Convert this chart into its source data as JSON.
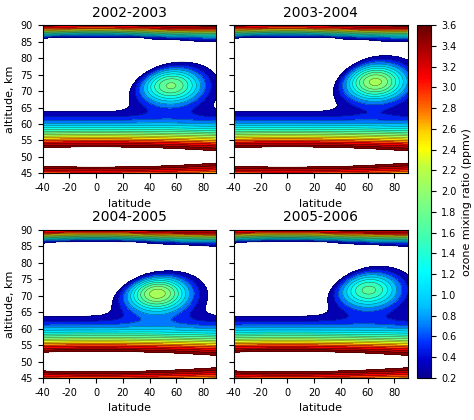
{
  "titles": [
    "2002-2003",
    "2003-2004",
    "2004-2005",
    "2005-2006"
  ],
  "lat_range": [
    -40,
    90
  ],
  "alt_range": [
    45,
    90
  ],
  "colorbar_levels": [
    0.2,
    0.4,
    0.6,
    0.8,
    1.0,
    1.2,
    1.4,
    1.6,
    1.8,
    2.0,
    2.2,
    2.4,
    2.6,
    2.8,
    3.0,
    3.2,
    3.4,
    3.6
  ],
  "vmin": 0.2,
  "vmax": 3.6,
  "xlabel": "latitude",
  "ylabel": "altitude, km",
  "colorbar_label": "ozone mixing ratio (ppmv)",
  "lat_ticks": [
    -40,
    -20,
    0,
    20,
    40,
    60,
    80
  ],
  "alt_ticks": [
    45,
    50,
    55,
    60,
    65,
    70,
    75,
    80,
    85,
    90
  ],
  "title_fontsize": 10,
  "label_fontsize": 8,
  "tick_fontsize": 7
}
